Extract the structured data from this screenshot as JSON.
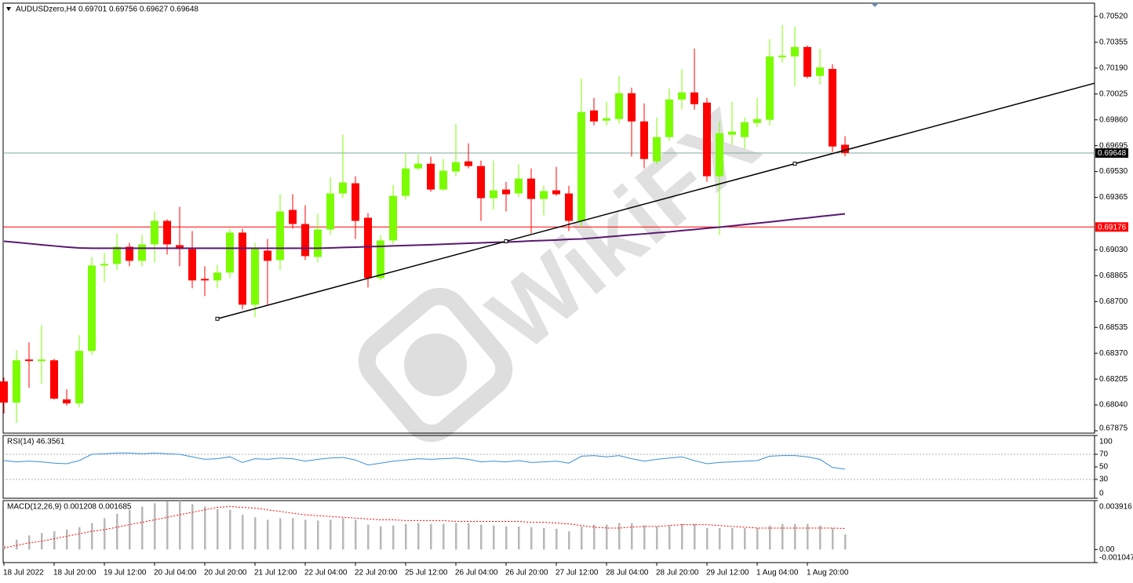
{
  "chart_data": [
    {
      "type": "candlestick",
      "title": "AUDUSDzero,H4  0.69701 0.69756 0.69627 0.69648",
      "watermark": "WikiFX",
      "categories": [
        "18 Jul 2022",
        null,
        null,
        null,
        "18 Jul 20:00",
        null,
        null,
        null,
        "19 Jul 12:00",
        null,
        null,
        null,
        "20 Jul 04:00",
        null,
        null,
        null,
        "20 Jul 20:00",
        null,
        null,
        null,
        "21 Jul 12:00",
        null,
        null,
        null,
        "22 Jul 04:00",
        null,
        null,
        null,
        "22 Jul 20:00",
        null,
        null,
        null,
        "25 Jul 12:00",
        null,
        null,
        null,
        "26 Jul 04:00",
        null,
        null,
        null,
        "26 Jul 20:00",
        null,
        null,
        null,
        "27 Jul 12:00",
        null,
        null,
        null,
        "28 Jul 04:00",
        null,
        null,
        null,
        "28 Jul 20:00",
        null,
        null,
        null,
        "29 Jul 12:00",
        null,
        null,
        null,
        "1 Aug 04:00",
        null,
        null,
        null,
        "1 Aug 20:00",
        null,
        null,
        null
      ],
      "open": [
        0.6819,
        0.68055,
        0.6833,
        0.6832,
        0.68325,
        0.68075,
        0.6805,
        0.68385,
        0.6893,
        0.6894,
        0.6905,
        0.6896,
        0.69065,
        0.69215,
        0.6906,
        0.69035,
        0.68845,
        0.68835,
        0.68885,
        0.6914,
        0.6868,
        0.69025,
        0.68965,
        0.69285,
        0.69195,
        0.68985,
        0.6916,
        0.6939,
        0.69455,
        0.69235,
        0.6885,
        0.6909,
        0.69375,
        0.6955,
        0.6958,
        0.69415,
        0.6953,
        0.69595,
        0.69565,
        0.6936,
        0.69415,
        0.6939,
        0.69485,
        0.69355,
        0.6941,
        0.6939,
        0.69215,
        0.6992,
        0.69855,
        0.69865,
        0.7003,
        0.6985,
        0.69595,
        0.6975,
        0.6999,
        0.70035,
        0.6997,
        0.695,
        0.69765,
        0.6975,
        0.6984,
        0.6986,
        0.7026,
        0.70265,
        0.70325,
        0.7014,
        0.70185,
        0.69701
      ],
      "high": [
        0.68215,
        0.6839,
        0.6844,
        0.6855,
        0.68335,
        0.6814,
        0.68485,
        0.68985,
        0.6901,
        0.69135,
        0.69075,
        0.69125,
        0.69275,
        0.69225,
        0.69305,
        0.6915,
        0.68925,
        0.68935,
        0.69165,
        0.69165,
        0.69075,
        0.691,
        0.69385,
        0.69385,
        0.69315,
        0.6926,
        0.69495,
        0.69765,
        0.695,
        0.69265,
        0.69125,
        0.69445,
        0.6965,
        0.6964,
        0.69625,
        0.6961,
        0.69835,
        0.6971,
        0.696,
        0.696,
        0.69465,
        0.69575,
        0.6955,
        0.6944,
        0.6956,
        0.6944,
        0.70125,
        0.7,
        0.69975,
        0.7014,
        0.70065,
        0.69965,
        0.69875,
        0.7006,
        0.70185,
        0.70315,
        0.7,
        0.6985,
        0.69975,
        0.69875,
        0.7,
        0.70375,
        0.70465,
        0.70455,
        0.70335,
        0.70315,
        0.70215,
        0.69756
      ],
      "low": [
        0.67985,
        0.67925,
        0.6815,
        0.68175,
        0.68075,
        0.68035,
        0.68025,
        0.6836,
        0.68825,
        0.689,
        0.68925,
        0.68925,
        0.6895,
        0.69,
        0.68925,
        0.68785,
        0.68735,
        0.68785,
        0.6885,
        0.6865,
        0.686,
        0.68675,
        0.689,
        0.69165,
        0.68965,
        0.6895,
        0.69125,
        0.6936,
        0.691,
        0.6879,
        0.68835,
        0.69065,
        0.6935,
        0.6954,
        0.694,
        0.6941,
        0.695,
        0.6955,
        0.69215,
        0.69285,
        0.69275,
        0.69365,
        0.69135,
        0.6925,
        0.69375,
        0.6915,
        0.69175,
        0.69825,
        0.69825,
        0.69835,
        0.69625,
        0.6955,
        0.69575,
        0.69725,
        0.69925,
        0.69925,
        0.69465,
        0.69125,
        0.697,
        0.69675,
        0.69815,
        0.69825,
        0.70225,
        0.70075,
        0.70125,
        0.70085,
        0.69655,
        0.69627
      ],
      "close": [
        0.68055,
        0.68325,
        0.6832,
        0.6833,
        0.6808,
        0.6805,
        0.68385,
        0.6893,
        0.6894,
        0.6905,
        0.6896,
        0.69065,
        0.69215,
        0.69065,
        0.69035,
        0.68835,
        0.68835,
        0.68885,
        0.6914,
        0.6868,
        0.69035,
        0.6896,
        0.69275,
        0.69195,
        0.6899,
        0.6916,
        0.6939,
        0.6946,
        0.69215,
        0.6885,
        0.6909,
        0.69375,
        0.6955,
        0.6958,
        0.69415,
        0.69535,
        0.6959,
        0.69565,
        0.6936,
        0.6941,
        0.69385,
        0.69485,
        0.69355,
        0.69405,
        0.69385,
        0.69215,
        0.6991,
        0.6985,
        0.6987,
        0.7003,
        0.6985,
        0.6961,
        0.6975,
        0.6999,
        0.70035,
        0.6996,
        0.695,
        0.69775,
        0.69785,
        0.69845,
        0.69865,
        0.70265,
        0.7027,
        0.70325,
        0.70135,
        0.70195,
        0.6969,
        0.69648
      ],
      "up_color": "#7cfc00",
      "down_color": "#ff0000",
      "moving_average": {
        "color": "#5a1870",
        "values": [
          0.69085,
          0.69078,
          0.6907,
          0.69062,
          0.69055,
          0.69048,
          0.69042,
          0.6904,
          0.6904,
          0.6904,
          0.6904,
          0.6904,
          0.6904,
          0.6904,
          0.6904,
          0.6904,
          0.6904,
          0.6904,
          0.6904,
          0.6904,
          0.6904,
          0.6904,
          0.6904,
          0.6904,
          0.6904,
          0.6904,
          0.69042,
          0.69045,
          0.69047,
          0.6905,
          0.69052,
          0.69055,
          0.69058,
          0.6906,
          0.69063,
          0.69066,
          0.69069,
          0.69072,
          0.69075,
          0.69078,
          0.6908,
          0.69083,
          0.69087,
          0.6909,
          0.69093,
          0.69097,
          0.691,
          0.69106,
          0.69113,
          0.69119,
          0.69126,
          0.69132,
          0.69139,
          0.69145,
          0.69153,
          0.6916,
          0.69168,
          0.69175,
          0.69183,
          0.69192,
          0.692,
          0.69208,
          0.69217,
          0.69226,
          0.69234,
          0.69243,
          0.69251,
          0.6926
        ]
      },
      "trendline": {
        "color": "#000000",
        "x": [
          17,
          40,
          63
        ],
        "y": [
          0.6859,
          0.69085,
          0.6958
        ]
      },
      "price_lines": [
        {
          "value": 0.69648,
          "color": "#7fa8a0",
          "label_background": "#000000"
        },
        {
          "value": 0.69176,
          "color": "#ff0000",
          "label_background": "#ff0000"
        }
      ],
      "ylim": [
        0.6786,
        0.70605
      ],
      "yticks": [
        {
          "value": 0.7052,
          "label": "0.70520"
        },
        0.70355,
        {
          "value": 0.7019,
          "label": "0.70190"
        },
        0.70025,
        {
          "value": 0.6986,
          "label": "0.69860"
        },
        0.69695,
        {
          "value": 0.6953,
          "label": "0.69530"
        },
        0.69365,
        {
          "value": 0.6903,
          "label": "0.69030"
        },
        0.68865,
        {
          "value": 0.687,
          "label": "0.68700"
        },
        0.68535,
        {
          "value": 0.6837,
          "label": "0.68370"
        },
        0.68205,
        {
          "value": 0.6804,
          "label": "0.68040"
        },
        0.67875
      ]
    },
    {
      "type": "line",
      "title": "RSI(14) 46.3561",
      "color": "#3b8fd4",
      "values": [
        60,
        58,
        59,
        58,
        56,
        55,
        60,
        70,
        71,
        72,
        72,
        71,
        72,
        71,
        70,
        66,
        62,
        63,
        66,
        57,
        63,
        62,
        64,
        63,
        59,
        62,
        64,
        65,
        61,
        53,
        56,
        59,
        61,
        63,
        62,
        63,
        64,
        62,
        58,
        59,
        58,
        60,
        57,
        58,
        59,
        56,
        67,
        68,
        66,
        68,
        63,
        59,
        62,
        64,
        66,
        60,
        55,
        57,
        58,
        59,
        60,
        67,
        68,
        68,
        66,
        62,
        49,
        46.3561
      ],
      "levels": [
        70,
        30
      ],
      "ylim": [
        0,
        100
      ],
      "yticks": [
        100,
        70,
        50,
        30,
        0
      ]
    },
    {
      "type": "bar",
      "title": "MACD(12,26,9) 0.001208 0.001685",
      "color": "#b8b8b8",
      "values": [
        0.00033,
        0.00079,
        0.00113,
        0.00132,
        0.00146,
        0.00159,
        0.00179,
        0.00212,
        0.00251,
        0.00285,
        0.00318,
        0.00344,
        0.00371,
        0.00384,
        0.003916,
        0.00364,
        0.00344,
        0.00324,
        0.00318,
        0.00278,
        0.00258,
        0.00238,
        0.00251,
        0.00251,
        0.00238,
        0.00232,
        0.00238,
        0.00251,
        0.00238,
        0.00199,
        0.00185,
        0.00192,
        0.00205,
        0.00212,
        0.00205,
        0.00205,
        0.00212,
        0.00212,
        0.00199,
        0.00192,
        0.00185,
        0.00185,
        0.00179,
        0.00172,
        0.00166,
        0.00146,
        0.00185,
        0.00199,
        0.00199,
        0.00212,
        0.00212,
        0.00192,
        0.00185,
        0.00192,
        0.00205,
        0.00205,
        0.00172,
        0.00172,
        0.00172,
        0.00172,
        0.00172,
        0.00192,
        0.00205,
        0.00205,
        0.00205,
        0.00192,
        0.00172,
        0.001208
      ],
      "signal": {
        "color": "#ff0000",
        "values": [
          0.00013,
          0.00033,
          0.00053,
          0.00066,
          0.00086,
          0.00106,
          0.00126,
          0.00146,
          0.00159,
          0.00179,
          0.00199,
          0.00218,
          0.00238,
          0.00258,
          0.00278,
          0.00298,
          0.00318,
          0.00338,
          0.00344,
          0.00338,
          0.00331,
          0.00318,
          0.00305,
          0.00291,
          0.00278,
          0.00271,
          0.00265,
          0.00258,
          0.00252,
          0.00245,
          0.00238,
          0.00238,
          0.00232,
          0.00232,
          0.00232,
          0.00232,
          0.00225,
          0.00225,
          0.00225,
          0.00225,
          0.00225,
          0.00225,
          0.00218,
          0.00218,
          0.00212,
          0.00205,
          0.00192,
          0.00179,
          0.00172,
          0.00172,
          0.00179,
          0.00185,
          0.00185,
          0.00192,
          0.00199,
          0.00199,
          0.00199,
          0.00192,
          0.00185,
          0.00179,
          0.00172,
          0.00172,
          0.00172,
          0.00172,
          0.00172,
          0.00172,
          0.00172,
          0.001685
        ]
      },
      "ylim": [
        -0.001047,
        0.003916
      ],
      "yticks": [
        0.003916,
        {
          "value": 0,
          "label": "0.00"
        },
        -0.001047
      ]
    }
  ]
}
